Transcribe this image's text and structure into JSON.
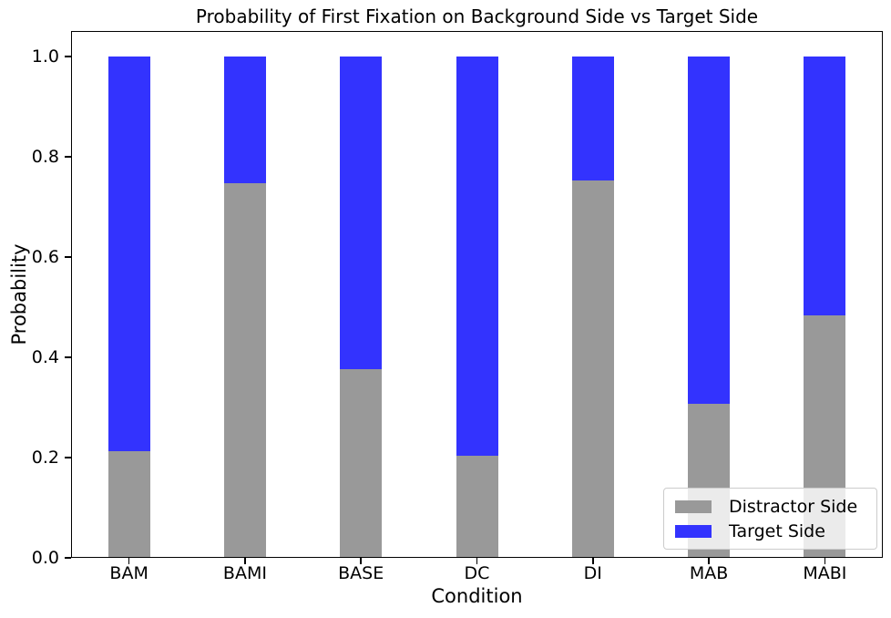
{
  "chart_data": {
    "type": "bar",
    "stacked": true,
    "title": "Probability of First Fixation on Background Side vs Target Side",
    "xlabel": "Condition",
    "ylabel": "Probability",
    "categories": [
      "BAM",
      "BAMI",
      "BASE",
      "DC",
      "DI",
      "MAB",
      "MABI"
    ],
    "series": [
      {
        "name": "Distractor Side",
        "color": "#999999",
        "values": [
          0.213,
          0.747,
          0.376,
          0.204,
          0.753,
          0.307,
          0.484
        ]
      },
      {
        "name": "Target Side",
        "color": "#3333fe",
        "values": [
          0.787,
          0.253,
          0.624,
          0.796,
          0.247,
          0.693,
          0.516
        ]
      }
    ],
    "yticks": [
      0.0,
      0.2,
      0.4,
      0.6,
      0.8,
      1.0
    ],
    "ytick_decimals": 1,
    "ylim": [
      0,
      1.051
    ],
    "bar_width_frac": 0.362,
    "grid": false,
    "legend_position": "lower right",
    "axis_color": "#000000",
    "background_color": "#ffffff"
  }
}
